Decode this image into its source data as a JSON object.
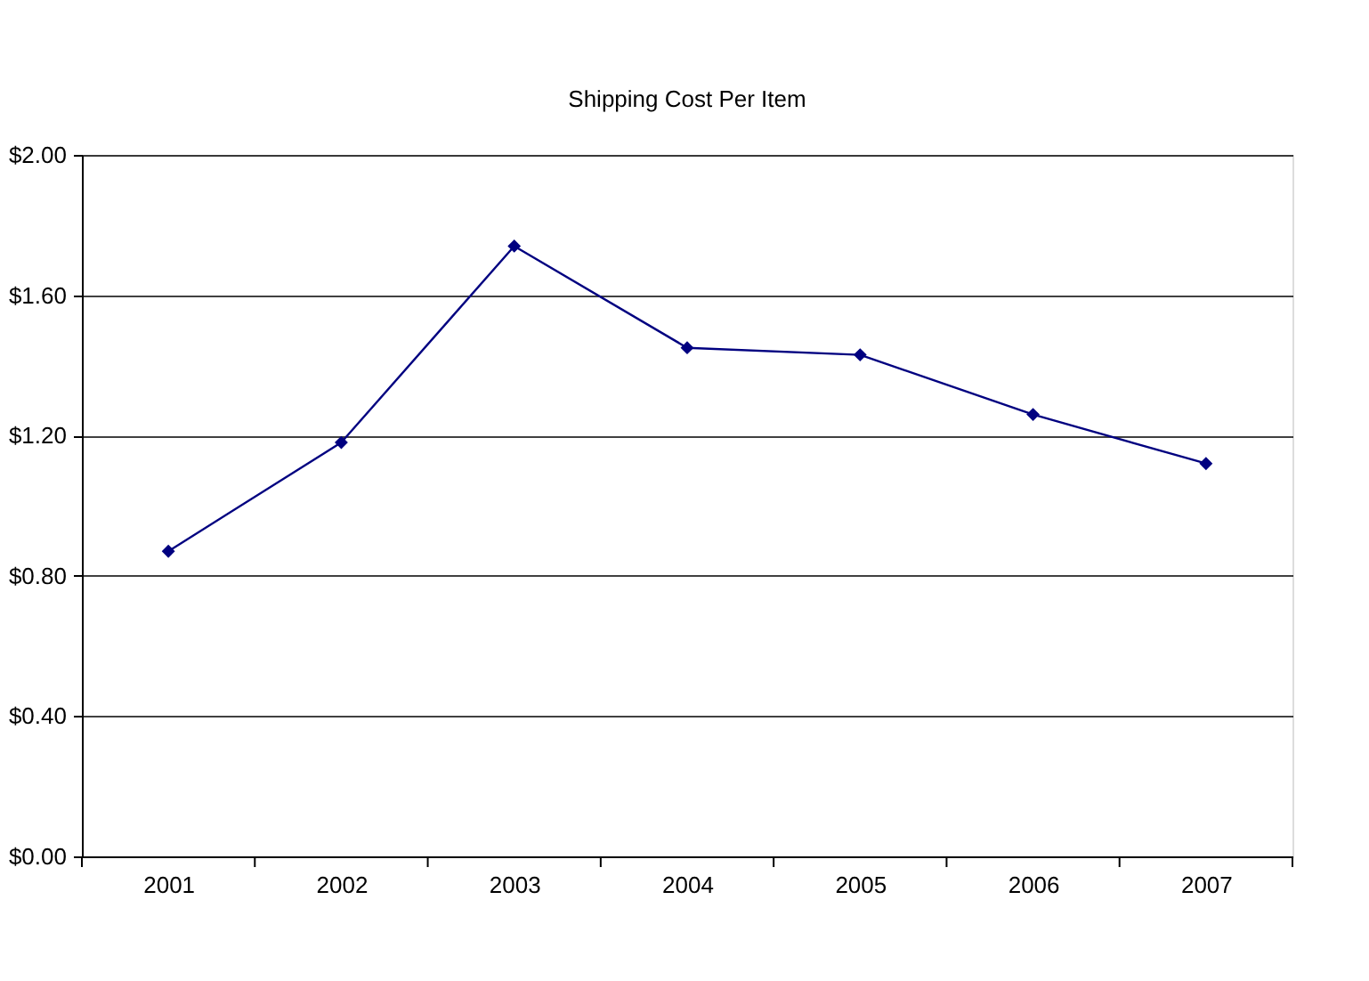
{
  "chart_data": {
    "type": "line",
    "title": "Shipping Cost Per Item",
    "categories": [
      "2001",
      "2002",
      "2003",
      "2004",
      "2005",
      "2006",
      "2007"
    ],
    "series": [
      {
        "color": "#000080",
        "values": [
          0.87,
          1.18,
          1.74,
          1.45,
          1.43,
          1.26,
          1.12
        ]
      }
    ],
    "ylim": [
      0,
      2
    ],
    "yticks": [
      {
        "value": 0,
        "label": "$0.00"
      },
      {
        "value": 0.4,
        "label": "$0.40"
      },
      {
        "value": 0.8,
        "label": "$0.80"
      },
      {
        "value": 1.2,
        "label": "$1.20"
      },
      {
        "value": 1.6,
        "label": "$1.60"
      },
      {
        "value": 2,
        "label": "$2.00"
      }
    ],
    "grid": "y",
    "marker": "diamond",
    "line_style": "solid"
  }
}
